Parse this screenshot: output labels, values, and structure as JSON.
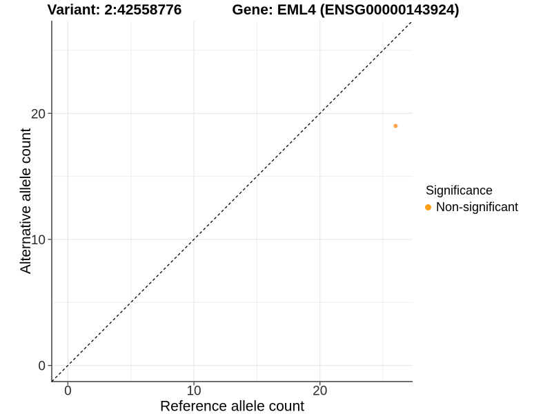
{
  "header": {
    "variant_title": "Variant: 2:42558776",
    "gene_title": "Gene: EML4 (ENSG00000143924)"
  },
  "legend": {
    "title": "Significance",
    "items": [
      {
        "label": "Non-significant",
        "color": "#FC9E15",
        "shape": "circle"
      }
    ],
    "position": "right"
  },
  "chart_data": {
    "type": "scatter",
    "title": "",
    "xlabel": "Reference allele count",
    "ylabel": "Alternative allele count",
    "xlim": [
      -1.28,
      27.35
    ],
    "ylim": [
      -1.28,
      27.35
    ],
    "x_ticks": [
      0,
      10,
      20
    ],
    "y_ticks": [
      0,
      10,
      20
    ],
    "minor_grid_ticks": [
      5,
      15,
      25
    ],
    "grid": true,
    "legend_position": "right",
    "identity_line": {
      "shown": true,
      "style": "dashed",
      "color": "#000000"
    },
    "series": [
      {
        "name": "Non-significant",
        "color": "#F9A74E",
        "points": [
          {
            "x": 26,
            "y": 19
          }
        ]
      }
    ],
    "style": {
      "grid_major_color": "#E4E4E4",
      "grid_minor_color": "#EDEDED",
      "axis_color": "#3F3F3F",
      "tick_label_color": "#2B2B2B",
      "axis_title_color": "#000000"
    }
  }
}
